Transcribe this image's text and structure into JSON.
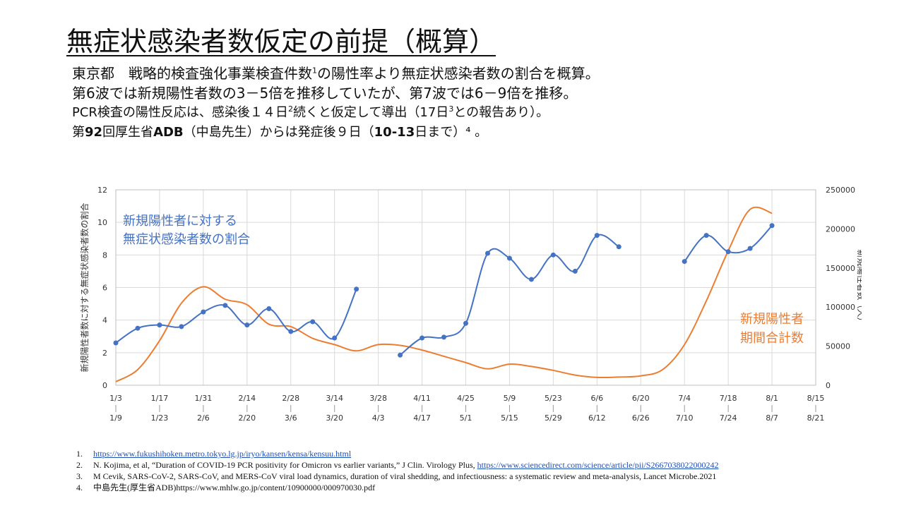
{
  "title": "無症状感染者数仮定の前提（概算）",
  "intro": {
    "line1_pre": "東京都　戦略的検査強化事業検査件数",
    "line1_sup": "1",
    "line1_post": "の陽性率より無症状感染者数の割合を概算。",
    "line2": "第6波では新規陽性者数の3－5倍を推移していたが、第7波では6－9倍を推移。",
    "line3_pre": "PCR検査の陽性反応は、感染後１４日",
    "line3_sup1": "2",
    "line3_mid": "続くと仮定して導出（17日",
    "line3_sup2": "3",
    "line3_post": "との報告あり）。",
    "line4_pre": "第",
    "line4_bold1": "92",
    "line4_mid": "回厚生省",
    "line4_bold2": "ADB",
    "line4_mid2": "（中島先生）からは発症後９日（",
    "line4_bold3": "10-13",
    "line4_post": "日まで）⁴ 。"
  },
  "chart_data": {
    "type": "line",
    "ylabel_left": "新規陽性者数に対する無症状感染者数の割合",
    "ylabel_right": "新規陽性者数（人）",
    "ylim_left": [
      0,
      12
    ],
    "ylim_right": [
      0,
      250000
    ],
    "yticks_left": [
      "0",
      "2",
      "4",
      "6",
      "8",
      "10",
      "12"
    ],
    "yticks_right": [
      "0",
      "50000",
      "100000",
      "150000",
      "200000",
      "250000"
    ],
    "xticks_top": [
      "1/3",
      "1/17",
      "1/31",
      "2/14",
      "2/28",
      "3/14",
      "3/28",
      "4/11",
      "4/25",
      "5/9",
      "5/23",
      "6/6",
      "6/20",
      "7/4",
      "7/18",
      "8/1",
      "8/15"
    ],
    "xticks_bottom": [
      "1/9",
      "1/23",
      "2/6",
      "2/20",
      "3/6",
      "3/20",
      "4/3",
      "4/17",
      "5/1",
      "5/15",
      "5/29",
      "6/12",
      "6/26",
      "7/10",
      "7/24",
      "8/7",
      "8/21"
    ],
    "grid": true,
    "series": [
      {
        "name": "新規陽性者に対する無症状感染者数の割合",
        "axis": "left",
        "color": "#4472c4",
        "segments": [
          [
            [
              0,
              2.6
            ],
            [
              1,
              3.5
            ],
            [
              2,
              3.7
            ],
            [
              3,
              3.6
            ],
            [
              4,
              4.5
            ],
            [
              5,
              4.9
            ],
            [
              6,
              3.7
            ],
            [
              7,
              4.7
            ],
            [
              8,
              3.3
            ],
            [
              9,
              3.9
            ],
            [
              10,
              2.9
            ],
            [
              11,
              5.9
            ]
          ],
          [
            [
              13,
              1.85
            ],
            [
              14,
              2.9
            ],
            [
              15,
              2.95
            ],
            [
              16,
              3.8
            ],
            [
              17,
              8.1
            ],
            [
              18,
              7.8
            ],
            [
              19,
              6.5
            ],
            [
              20,
              8.0
            ],
            [
              21,
              7.0
            ],
            [
              22,
              9.2
            ],
            [
              23,
              8.5
            ]
          ],
          [
            [
              26,
              7.6
            ],
            [
              27,
              9.2
            ],
            [
              28,
              8.2
            ],
            [
              29,
              8.4
            ],
            [
              30,
              9.8
            ]
          ]
        ]
      },
      {
        "name": "新規陽性者期間合計数",
        "axis": "right",
        "color": "#ed7d31",
        "points": [
          [
            0,
            4500
          ],
          [
            1,
            20000
          ],
          [
            2,
            57000
          ],
          [
            3,
            105000
          ],
          [
            4,
            126000
          ],
          [
            5,
            110000
          ],
          [
            6,
            103000
          ],
          [
            7,
            78000
          ],
          [
            8,
            75000
          ],
          [
            9,
            60000
          ],
          [
            10,
            52000
          ],
          [
            11,
            44000
          ],
          [
            12,
            52000
          ],
          [
            13,
            51000
          ],
          [
            14,
            45000
          ],
          [
            15,
            37000
          ],
          [
            16,
            29000
          ],
          [
            17,
            21000
          ],
          [
            18,
            27000
          ],
          [
            19,
            24000
          ],
          [
            20,
            19000
          ],
          [
            21,
            13000
          ],
          [
            22,
            10000
          ],
          [
            23,
            10500
          ],
          [
            24,
            12000
          ],
          [
            25,
            20000
          ],
          [
            26,
            52000
          ],
          [
            27,
            108000
          ],
          [
            28,
            172000
          ],
          [
            29,
            225000
          ],
          [
            30,
            220000
          ]
        ]
      }
    ],
    "annotations": {
      "blue_label_line1": "新規陽性者に対する",
      "blue_label_line2": "無症状感染者数の割合",
      "orange_label_line1": "新規陽性者",
      "orange_label_line2": "期間合計数"
    }
  },
  "refs": [
    {
      "num": "1.",
      "link": "https://www.fukushihoken.metro.tokyo.lg.jp/iryo/kansen/kensa/kensuu.html",
      "text": "",
      "tail": ""
    },
    {
      "num": "2.",
      "text": "N. Kojima, et al, “Duration of COVID-19 PCR positivity for Omicron vs earlier variants,” J Clin. Virology Plus, ",
      "link": "https://www.sciencedirect.com/science/article/pii/S2667038022000242",
      "tail": ""
    },
    {
      "num": "3.",
      "text": "M Cevik, SARS-CoV-2, SARS-CoV, and MERS-CoV viral load dynamics, duration of viral shedding, and infectiousness: a systematic review and meta-analysis, Lancet Microbe.2021",
      "link": "",
      "tail": ""
    },
    {
      "num": "4.",
      "text": "中島先生(厚生省ADB)https://www.mhlw.go.jp/content/10900000/000970030.pdf",
      "link": "",
      "tail": ""
    }
  ]
}
